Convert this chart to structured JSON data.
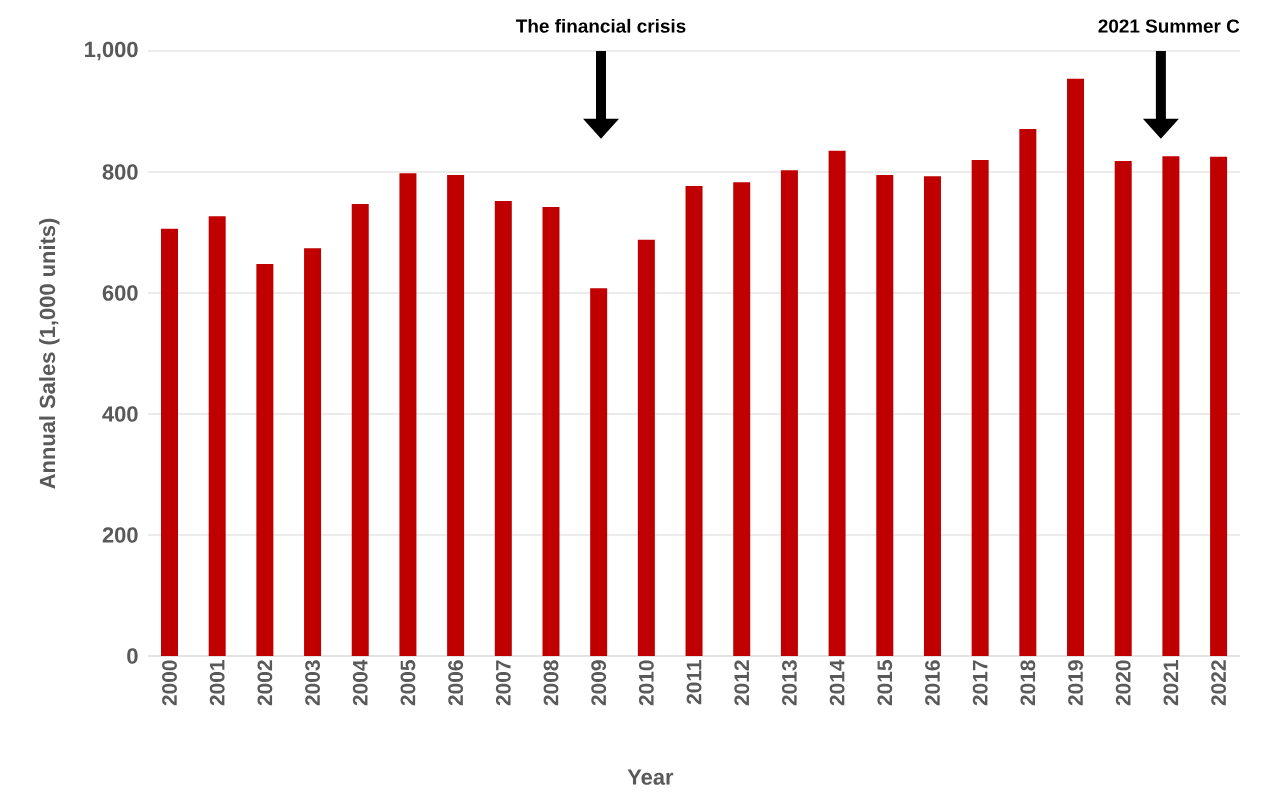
{
  "chart_data": {
    "type": "bar",
    "xlabel": "Year",
    "ylabel": "Annual Sales (1,000 units)",
    "categories": [
      "2000",
      "2001",
      "2002",
      "2003",
      "2004",
      "2005",
      "2006",
      "2007",
      "2008",
      "2009",
      "2010",
      "2011",
      "2012",
      "2013",
      "2014",
      "2015",
      "2016",
      "2017",
      "2018",
      "2019",
      "2020",
      "2021",
      "2022"
    ],
    "values": [
      706,
      727,
      648,
      674,
      747,
      798,
      795,
      752,
      742,
      608,
      688,
      777,
      783,
      803,
      835,
      795,
      793,
      820,
      871,
      954,
      818,
      826,
      825
    ],
    "color": "#c00000",
    "ylim": [
      0,
      1000
    ],
    "yticks": [
      0,
      200,
      400,
      600,
      800,
      {
        "value": 1000,
        "label": "1,000"
      }
    ],
    "grid": "y",
    "annotations": [
      "The financial crisis",
      "2021 Summer C"
    ]
  }
}
